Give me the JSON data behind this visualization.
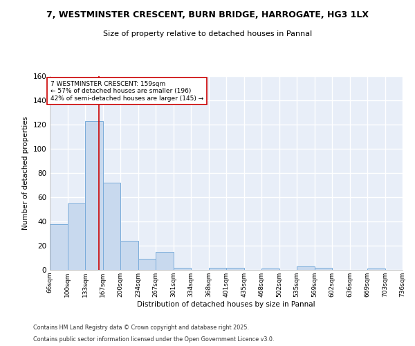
{
  "title": "7, WESTMINSTER CRESCENT, BURN BRIDGE, HARROGATE, HG3 1LX",
  "subtitle": "Size of property relative to detached houses in Pannal",
  "xlabel": "Distribution of detached houses by size in Pannal",
  "ylabel": "Number of detached properties",
  "bar_color": "#c8d9ee",
  "bar_edge_color": "#7aacda",
  "background_color": "#e8eef8",
  "grid_color": "#ffffff",
  "bin_edges": [
    66,
    100,
    133,
    167,
    200,
    234,
    267,
    301,
    334,
    368,
    401,
    435,
    468,
    502,
    535,
    569,
    602,
    636,
    669,
    703,
    736
  ],
  "bin_labels": [
    "66sqm",
    "100sqm",
    "133sqm",
    "167sqm",
    "200sqm",
    "234sqm",
    "267sqm",
    "301sqm",
    "334sqm",
    "368sqm",
    "401sqm",
    "435sqm",
    "468sqm",
    "502sqm",
    "535sqm",
    "569sqm",
    "602sqm",
    "636sqm",
    "669sqm",
    "703sqm",
    "736sqm"
  ],
  "bar_heights": [
    38,
    55,
    123,
    72,
    24,
    9,
    15,
    2,
    0,
    2,
    2,
    0,
    1,
    0,
    3,
    2,
    0,
    0,
    1,
    0
  ],
  "property_size": 159,
  "red_line_color": "#cc0000",
  "annotation_line1": "7 WESTMINSTER CRESCENT: 159sqm",
  "annotation_line2": "← 57% of detached houses are smaller (196)",
  "annotation_line3": "42% of semi-detached houses are larger (145) →",
  "annotation_box_color": "#ffffff",
  "annotation_box_edge": "#cc0000",
  "ylim": [
    0,
    160
  ],
  "yticks": [
    0,
    20,
    40,
    60,
    80,
    100,
    120,
    140,
    160
  ],
  "footer1": "Contains HM Land Registry data © Crown copyright and database right 2025.",
  "footer2": "Contains public sector information licensed under the Open Government Licence v3.0."
}
